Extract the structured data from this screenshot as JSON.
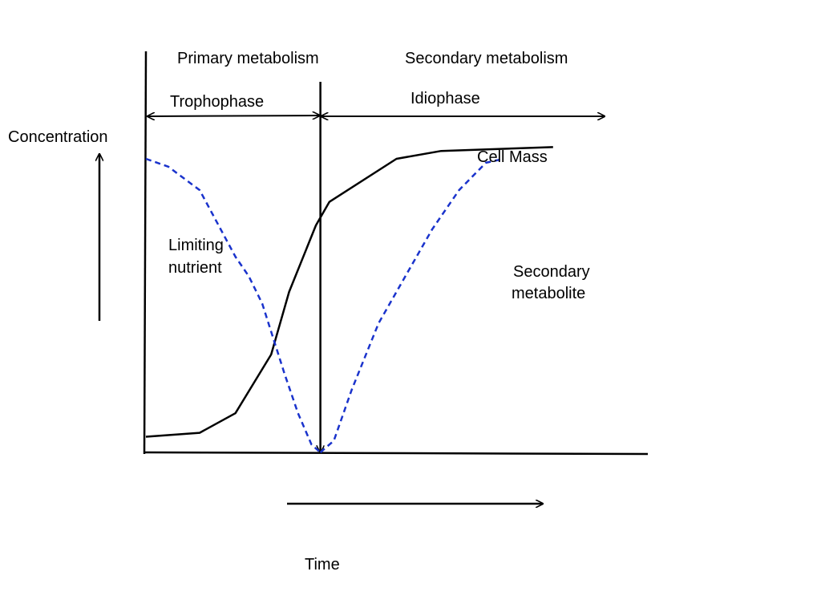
{
  "chart_data": {
    "type": "line",
    "title": "",
    "xlabel": "Time",
    "ylabel": "Concentration",
    "xlim": [
      0,
      100
    ],
    "ylim": [
      0,
      100
    ],
    "grid": false,
    "legend": "none",
    "series": [
      {
        "name": "Cell Mass",
        "color": "#000000",
        "dash": "solid",
        "x": [
          0,
          12,
          20,
          28,
          32,
          38,
          41,
          56,
          66,
          91
        ],
        "y": [
          4,
          5,
          10,
          25,
          41,
          58,
          64,
          75,
          77,
          78
        ]
      },
      {
        "name": "Limiting nutrient",
        "label_lines": [
          "Limiting",
          "nutrient"
        ],
        "color": "#1a33cc",
        "dash": "dashed",
        "x": [
          0,
          5,
          12,
          20,
          23,
          26,
          31,
          34,
          37,
          39
        ],
        "y": [
          75,
          73,
          67,
          50,
          45,
          38,
          20,
          10,
          2,
          0
        ]
      },
      {
        "name": "Secondary metabolite",
        "label_lines": [
          "Secondary",
          "metabolite"
        ],
        "color": "#1a33cc",
        "dash": "dashed",
        "x": [
          39,
          42,
          46,
          52,
          58,
          64,
          70,
          76,
          80
        ],
        "y": [
          0,
          3,
          16,
          33,
          45,
          57,
          67,
          74,
          75
        ]
      }
    ],
    "phase_divider_x": 39,
    "annotations": {
      "primary_metabolism": "Primary metabolism",
      "secondary_metabolism": "Secondary metabolism",
      "trophophase": "Trophophase",
      "idiophase": "Idiophase"
    }
  }
}
